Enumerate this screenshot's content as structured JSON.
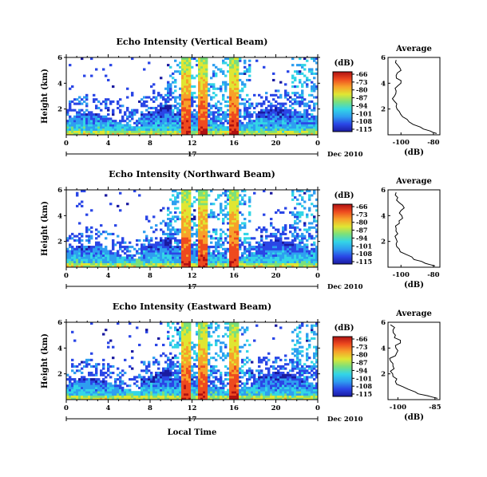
{
  "figure": {
    "date_label": "Dec 2010",
    "day_label": "17",
    "colorbar_title": "(dB)",
    "colorbar_ticks": [
      "-66",
      "-73",
      "-80",
      "-87",
      "-94",
      "-101",
      "-108",
      "-115"
    ],
    "colormap": [
      "#1a1aa0",
      "#2a46e6",
      "#2e9ef0",
      "#33d6e6",
      "#7be07b",
      "#e0e632",
      "#f7a12a",
      "#ee4a1f",
      "#b01212"
    ],
    "profile_title": "Average",
    "profile_xlabel": "(dB)",
    "xaxis_label": "Local Time"
  },
  "chart_data": [
    {
      "type": "heatmap",
      "title": "Echo Intensity (Vertical Beam)",
      "ylabel": "Height (km)",
      "xlabel": "",
      "x_range_hours": [
        0,
        24
      ],
      "x_ticks": [
        "0",
        "4",
        "8",
        "12",
        "16",
        "20",
        "0"
      ],
      "ylim_km": [
        0,
        6
      ],
      "y_ticks": [
        "6",
        "4",
        "2"
      ],
      "color_range_db": [
        -115,
        -66
      ],
      "rain_bands_hours": [
        [
          10.9,
          11.9
        ],
        [
          12.6,
          13.4
        ],
        [
          15.5,
          16.5
        ]
      ],
      "profile": {
        "title": "Average",
        "xlabel": "(dB)",
        "x_ticks": [
          "-100",
          "-80"
        ],
        "y_ticks": [
          "6",
          "4",
          "2"
        ],
        "xlim_db": [
          -108,
          -76
        ],
        "height_km": [
          0.1,
          0.3,
          0.6,
          1.0,
          1.4,
          1.8,
          2.2,
          2.6,
          3.0,
          3.4,
          3.8,
          4.2,
          4.6,
          5.0,
          5.4,
          5.8
        ],
        "value_db": [
          -78,
          -82,
          -88,
          -95,
          -99,
          -101,
          -103,
          -104,
          -104,
          -103,
          -102,
          -100,
          -103,
          -100,
          -102,
          -103
        ]
      }
    },
    {
      "type": "heatmap",
      "title": "Echo Intensity (Northward Beam)",
      "ylabel": "Height (km)",
      "xlabel": "",
      "x_range_hours": [
        0,
        24
      ],
      "x_ticks": [
        "0",
        "4",
        "8",
        "12",
        "16",
        "20",
        "0"
      ],
      "ylim_km": [
        0,
        6
      ],
      "y_ticks": [
        "6",
        "4",
        "2"
      ],
      "color_range_db": [
        -115,
        -66
      ],
      "rain_bands_hours": [
        [
          10.9,
          11.9
        ],
        [
          12.6,
          13.4
        ],
        [
          15.5,
          16.5
        ]
      ],
      "profile": {
        "title": "Average",
        "xlabel": "(dB)",
        "x_ticks": [
          "-100",
          "-80"
        ],
        "y_ticks": [
          "6",
          "4",
          "2"
        ],
        "xlim_db": [
          -108,
          -76
        ],
        "height_km": [
          0.1,
          0.3,
          0.6,
          1.0,
          1.4,
          1.8,
          2.2,
          2.6,
          3.0,
          3.4,
          3.8,
          4.2,
          4.6,
          5.0,
          5.4,
          5.8
        ],
        "value_db": [
          -79,
          -85,
          -92,
          -97,
          -101,
          -103,
          -103,
          -102,
          -103,
          -101,
          -99,
          -101,
          -98,
          -101,
          -102,
          -103
        ]
      }
    },
    {
      "type": "heatmap",
      "title": "Echo Intensity (Eastward Beam)",
      "ylabel": "Height (km)",
      "xlabel": "Local Time",
      "x_range_hours": [
        0,
        24
      ],
      "x_ticks": [
        "0",
        "4",
        "8",
        "12",
        "16",
        "20",
        "0"
      ],
      "ylim_km": [
        0,
        6
      ],
      "y_ticks": [
        "6",
        "4",
        "2"
      ],
      "color_range_db": [
        -115,
        -66
      ],
      "rain_bands_hours": [
        [
          10.9,
          11.9
        ],
        [
          12.6,
          13.4
        ],
        [
          15.5,
          16.5
        ]
      ],
      "profile": {
        "title": "Average",
        "xlabel": "(dB)",
        "x_ticks": [
          "-100",
          "-85"
        ],
        "y_ticks": [
          "6",
          "4",
          "2"
        ],
        "xlim_db": [
          -104,
          -83
        ],
        "height_km": [
          0.1,
          0.3,
          0.6,
          1.0,
          1.4,
          1.8,
          2.2,
          2.6,
          3.0,
          3.4,
          3.8,
          4.2,
          4.6,
          5.0,
          5.4,
          5.8
        ],
        "value_db": [
          -84,
          -88,
          -93,
          -98,
          -101,
          -102,
          -103,
          -102,
          -103,
          -101,
          -100,
          -101,
          -99,
          -101,
          -102,
          -103
        ]
      }
    }
  ]
}
